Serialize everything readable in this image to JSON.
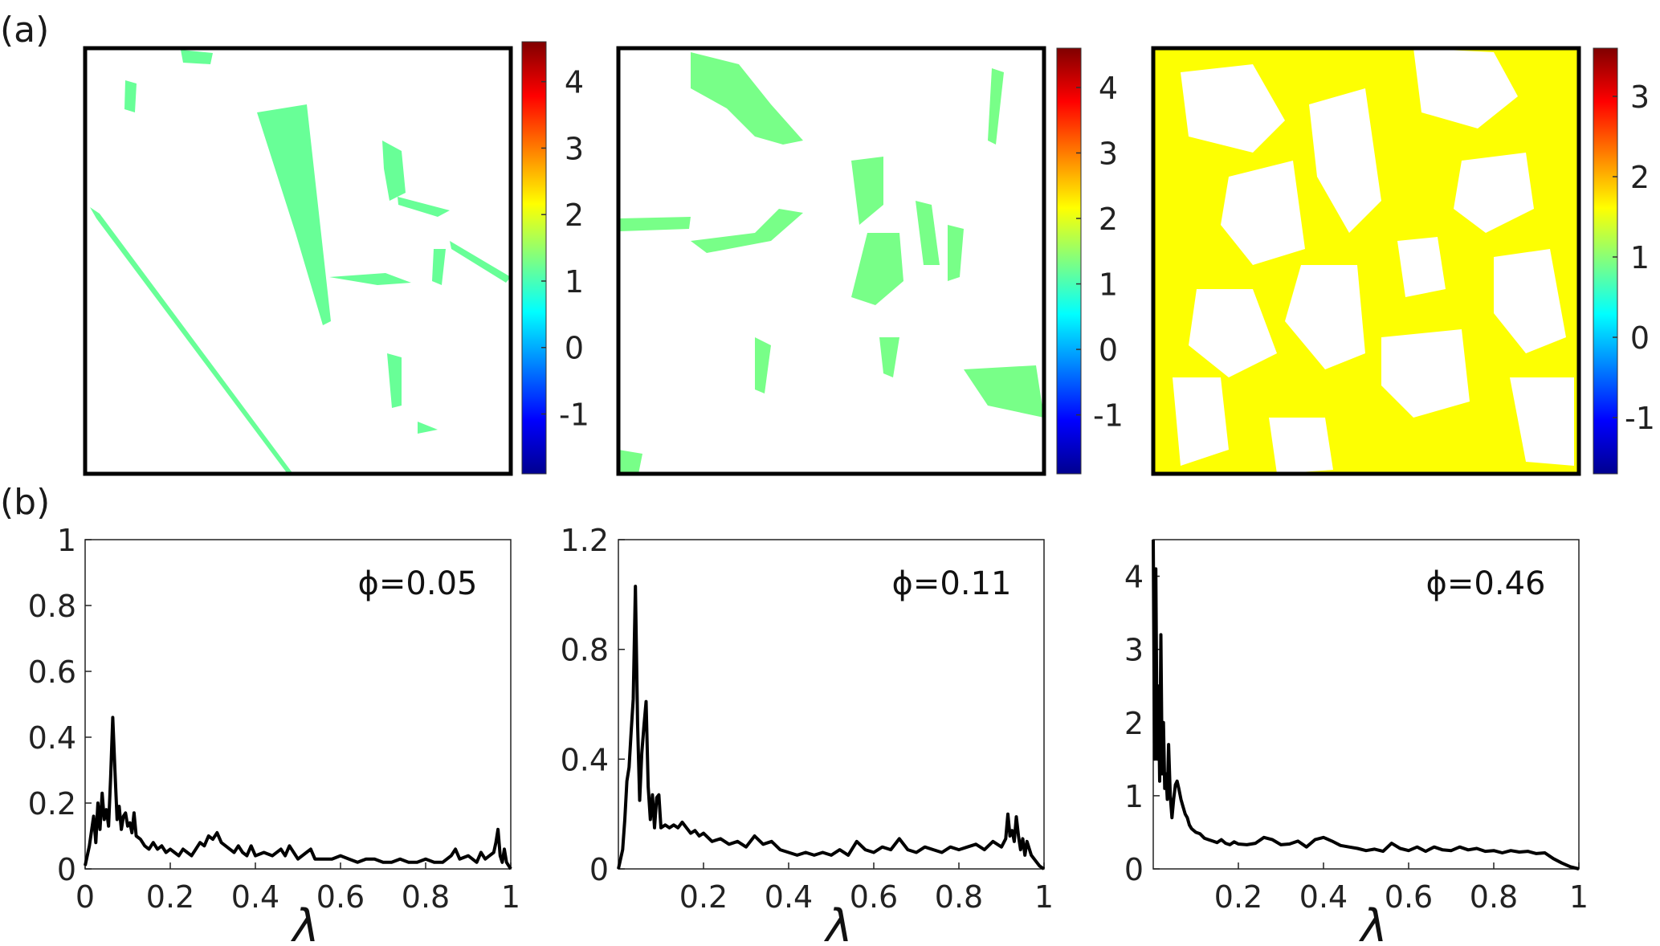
{
  "panel_labels": {
    "a": "(a)",
    "b": "(b)"
  },
  "colormap": [
    "#00008f",
    "#0000ff",
    "#0080ff",
    "#00ffff",
    "#80ff80",
    "#ffff00",
    "#ff8000",
    "#ff0000",
    "#800000"
  ],
  "chart_data": [
    {
      "type": "heatmap",
      "panel": "a",
      "colorbar": {
        "range": [
          -1.9,
          4.6
        ],
        "ticks": [
          -1,
          0,
          1,
          2,
          3,
          4
        ],
        "tick_labels": [
          "-1",
          "0",
          "1",
          "2",
          "3",
          "4"
        ]
      },
      "approx_level": 1.2
    },
    {
      "type": "heatmap",
      "panel": "a",
      "colorbar": {
        "range": [
          -1.9,
          4.6
        ],
        "ticks": [
          -1,
          0,
          1,
          2,
          3,
          4
        ],
        "tick_labels": [
          "-1",
          "0",
          "1",
          "2",
          "3",
          "4"
        ]
      },
      "approx_level": 1.3
    },
    {
      "type": "heatmap",
      "panel": "a",
      "colorbar": {
        "range": [
          -1.7,
          3.6
        ],
        "ticks": [
          -1,
          0,
          1,
          2,
          3
        ],
        "tick_labels": [
          "-1",
          "0",
          "1",
          "2",
          "3"
        ]
      },
      "approx_level": 1.6
    },
    {
      "type": "line",
      "panel": "b",
      "annotation": "ϕ=0.05",
      "xlabel": "λ",
      "xlim": [
        0,
        1
      ],
      "ylim": [
        0,
        1
      ],
      "xticks": [
        0,
        0.2,
        0.4,
        0.6,
        0.8,
        1
      ],
      "xtick_labels": [
        "0",
        "0.2",
        "0.4",
        "0.6",
        "0.8",
        "1"
      ],
      "yticks": [
        0,
        0.2,
        0.4,
        0.6,
        0.8,
        1
      ],
      "ytick_labels": [
        "0",
        "0.2",
        "0.4",
        "0.6",
        "0.8",
        "1"
      ],
      "x": [
        0,
        0.01,
        0.02,
        0.025,
        0.03,
        0.035,
        0.04,
        0.045,
        0.05,
        0.055,
        0.06,
        0.065,
        0.07,
        0.075,
        0.08,
        0.085,
        0.09,
        0.095,
        0.1,
        0.105,
        0.11,
        0.115,
        0.12,
        0.13,
        0.14,
        0.15,
        0.16,
        0.17,
        0.18,
        0.19,
        0.2,
        0.21,
        0.22,
        0.23,
        0.24,
        0.25,
        0.26,
        0.27,
        0.28,
        0.29,
        0.3,
        0.31,
        0.32,
        0.33,
        0.34,
        0.35,
        0.36,
        0.37,
        0.38,
        0.39,
        0.4,
        0.42,
        0.44,
        0.46,
        0.47,
        0.48,
        0.5,
        0.52,
        0.53,
        0.54,
        0.56,
        0.58,
        0.6,
        0.62,
        0.64,
        0.66,
        0.68,
        0.7,
        0.72,
        0.74,
        0.76,
        0.78,
        0.8,
        0.82,
        0.84,
        0.86,
        0.87,
        0.88,
        0.9,
        0.92,
        0.93,
        0.94,
        0.95,
        0.96,
        0.965,
        0.97,
        0.975,
        0.98,
        0.985,
        0.99,
        1
      ],
      "y": [
        0.01,
        0.07,
        0.16,
        0.08,
        0.2,
        0.12,
        0.23,
        0.15,
        0.18,
        0.13,
        0.28,
        0.46,
        0.3,
        0.15,
        0.19,
        0.12,
        0.16,
        0.17,
        0.13,
        0.14,
        0.11,
        0.17,
        0.1,
        0.09,
        0.07,
        0.06,
        0.08,
        0.06,
        0.07,
        0.05,
        0.06,
        0.05,
        0.04,
        0.06,
        0.05,
        0.04,
        0.06,
        0.08,
        0.07,
        0.1,
        0.09,
        0.11,
        0.08,
        0.07,
        0.06,
        0.05,
        0.07,
        0.05,
        0.04,
        0.07,
        0.04,
        0.05,
        0.04,
        0.06,
        0.04,
        0.07,
        0.03,
        0.05,
        0.06,
        0.03,
        0.03,
        0.03,
        0.04,
        0.03,
        0.02,
        0.03,
        0.03,
        0.02,
        0.02,
        0.03,
        0.02,
        0.02,
        0.03,
        0.02,
        0.02,
        0.04,
        0.06,
        0.03,
        0.04,
        0.02,
        0.05,
        0.03,
        0.04,
        0.05,
        0.08,
        0.12,
        0.04,
        0.02,
        0.06,
        0.02,
        0
      ]
    },
    {
      "type": "line",
      "panel": "b",
      "annotation": "ϕ=0.11",
      "xlabel": "λ",
      "xlim": [
        0,
        1
      ],
      "ylim": [
        0,
        1.2
      ],
      "xticks": [
        0.2,
        0.4,
        0.6,
        0.8,
        1
      ],
      "xtick_labels": [
        "0.2",
        "0.4",
        "0.6",
        "0.8",
        "1"
      ],
      "yticks": [
        0,
        0.4,
        0.8,
        1.2
      ],
      "ytick_labels": [
        "0",
        "0.4",
        "0.8",
        "1.2"
      ],
      "x": [
        0,
        0.01,
        0.015,
        0.02,
        0.025,
        0.03,
        0.035,
        0.04,
        0.045,
        0.05,
        0.055,
        0.06,
        0.065,
        0.07,
        0.075,
        0.08,
        0.085,
        0.09,
        0.095,
        0.1,
        0.11,
        0.12,
        0.13,
        0.14,
        0.15,
        0.16,
        0.17,
        0.18,
        0.19,
        0.2,
        0.22,
        0.24,
        0.26,
        0.28,
        0.3,
        0.32,
        0.34,
        0.36,
        0.38,
        0.4,
        0.42,
        0.44,
        0.46,
        0.48,
        0.5,
        0.52,
        0.54,
        0.56,
        0.58,
        0.6,
        0.62,
        0.64,
        0.66,
        0.68,
        0.7,
        0.72,
        0.74,
        0.76,
        0.78,
        0.8,
        0.82,
        0.84,
        0.86,
        0.88,
        0.9,
        0.91,
        0.915,
        0.92,
        0.925,
        0.93,
        0.935,
        0.94,
        0.945,
        0.95,
        0.955,
        0.96,
        0.97,
        0.98,
        0.99,
        1
      ],
      "y": [
        0,
        0.07,
        0.18,
        0.32,
        0.37,
        0.5,
        0.62,
        1.03,
        0.53,
        0.25,
        0.42,
        0.52,
        0.61,
        0.3,
        0.18,
        0.27,
        0.15,
        0.26,
        0.27,
        0.15,
        0.16,
        0.15,
        0.16,
        0.15,
        0.17,
        0.15,
        0.13,
        0.14,
        0.12,
        0.13,
        0.1,
        0.11,
        0.09,
        0.1,
        0.08,
        0.12,
        0.09,
        0.1,
        0.07,
        0.06,
        0.05,
        0.06,
        0.05,
        0.06,
        0.05,
        0.07,
        0.05,
        0.1,
        0.07,
        0.06,
        0.08,
        0.07,
        0.11,
        0.07,
        0.06,
        0.08,
        0.07,
        0.06,
        0.08,
        0.07,
        0.08,
        0.09,
        0.07,
        0.1,
        0.08,
        0.11,
        0.2,
        0.12,
        0.14,
        0.1,
        0.19,
        0.12,
        0.07,
        0.11,
        0.05,
        0.1,
        0.05,
        0.03,
        0.01,
        0
      ]
    },
    {
      "type": "line",
      "panel": "b",
      "annotation": "ϕ=0.46",
      "xlabel": "λ",
      "xlim": [
        0,
        1
      ],
      "ylim": [
        0,
        4.5
      ],
      "xticks": [
        0.2,
        0.4,
        0.6,
        0.8,
        1
      ],
      "xtick_labels": [
        "0.2",
        "0.4",
        "0.6",
        "0.8",
        "1"
      ],
      "yticks": [
        0,
        1,
        2,
        3,
        4
      ],
      "ytick_labels": [
        "0",
        "1",
        "2",
        "3",
        "4"
      ],
      "x": [
        0,
        0.003,
        0.006,
        0.009,
        0.012,
        0.015,
        0.018,
        0.021,
        0.024,
        0.027,
        0.03,
        0.033,
        0.036,
        0.04,
        0.044,
        0.048,
        0.052,
        0.056,
        0.06,
        0.065,
        0.07,
        0.075,
        0.08,
        0.085,
        0.09,
        0.1,
        0.11,
        0.12,
        0.13,
        0.14,
        0.15,
        0.16,
        0.17,
        0.18,
        0.19,
        0.2,
        0.22,
        0.24,
        0.26,
        0.28,
        0.3,
        0.32,
        0.34,
        0.36,
        0.38,
        0.4,
        0.42,
        0.44,
        0.46,
        0.48,
        0.5,
        0.52,
        0.54,
        0.56,
        0.58,
        0.6,
        0.62,
        0.64,
        0.66,
        0.68,
        0.7,
        0.72,
        0.74,
        0.76,
        0.78,
        0.8,
        0.82,
        0.84,
        0.86,
        0.88,
        0.9,
        0.92,
        0.94,
        0.96,
        0.98,
        1
      ],
      "y": [
        4.5,
        1.5,
        4.1,
        1.5,
        2.5,
        1.2,
        3.2,
        1.3,
        2.0,
        1.1,
        1.3,
        0.95,
        1.7,
        1.0,
        0.7,
        0.95,
        1.15,
        1.2,
        1.1,
        0.95,
        0.85,
        0.75,
        0.7,
        0.6,
        0.55,
        0.5,
        0.48,
        0.42,
        0.4,
        0.38,
        0.36,
        0.4,
        0.35,
        0.33,
        0.37,
        0.34,
        0.33,
        0.35,
        0.43,
        0.4,
        0.33,
        0.34,
        0.38,
        0.3,
        0.4,
        0.43,
        0.38,
        0.32,
        0.3,
        0.28,
        0.25,
        0.27,
        0.24,
        0.35,
        0.28,
        0.25,
        0.3,
        0.24,
        0.3,
        0.26,
        0.25,
        0.3,
        0.26,
        0.28,
        0.24,
        0.25,
        0.22,
        0.25,
        0.23,
        0.24,
        0.21,
        0.22,
        0.14,
        0.08,
        0.03,
        0
      ]
    }
  ]
}
